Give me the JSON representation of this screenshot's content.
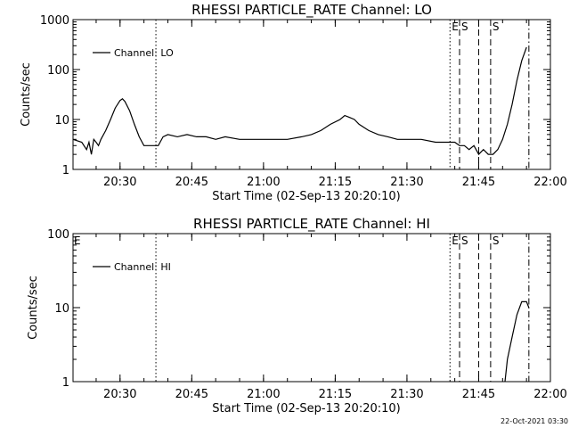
{
  "footer_timestamp": "22-Oct-2021 03:30",
  "chart_data": [
    {
      "type": "line",
      "title": "RHESSI PARTICLE_RATE Channel: LO",
      "xlabel": "Start Time (02-Sep-13 20:20:10)",
      "ylabel": "Counts/sec",
      "y_scale": "log",
      "xlim": [
        "20:20:10",
        "22:00:00"
      ],
      "ylim": [
        1,
        1000
      ],
      "x_tick_labels": [
        "20:30",
        "20:45",
        "21:00",
        "21:15",
        "21:30",
        "21:45",
        "22:00"
      ],
      "y_tick_labels": [
        "1",
        "10",
        "100",
        "1000"
      ],
      "legend": {
        "label": "Channel: LO",
        "placement": "top-left"
      },
      "markers": [
        {
          "time": "20:37:30",
          "style": "dotted",
          "label": ""
        },
        {
          "time": "21:39:00",
          "style": "dotted",
          "label": "E"
        },
        {
          "time": "21:41:00",
          "style": "dashed",
          "label": "S"
        },
        {
          "time": "21:45:00",
          "style": "dashed",
          "label": ""
        },
        {
          "time": "21:47:30",
          "style": "dashed",
          "label": "S"
        },
        {
          "time": "21:55:30",
          "style": "dashdot",
          "label": ""
        }
      ],
      "series": [
        {
          "name": "Channel: LO",
          "x": [
            "20:20:10",
            "20:22:00",
            "20:23:00",
            "20:23:30",
            "20:24:00",
            "20:24:30",
            "20:25:00",
            "20:25:30",
            "20:26:00",
            "20:27:00",
            "20:28:00",
            "20:29:00",
            "20:30:00",
            "20:30:30",
            "20:31:00",
            "20:32:00",
            "20:33:00",
            "20:34:00",
            "20:35:00",
            "20:36:00",
            "20:37:00",
            "20:38:00",
            "20:39:00",
            "20:40:00",
            "20:42:00",
            "20:44:00",
            "20:46:00",
            "20:48:00",
            "20:50:00",
            "20:52:00",
            "20:55:00",
            "21:00:00",
            "21:05:00",
            "21:08:00",
            "21:10:00",
            "21:12:00",
            "21:14:00",
            "21:16:00",
            "21:17:00",
            "21:18:00",
            "21:19:00",
            "21:20:00",
            "21:22:00",
            "21:24:00",
            "21:26:00",
            "21:28:00",
            "21:30:00",
            "21:33:00",
            "21:36:00",
            "21:38:00",
            "21:40:00",
            "21:41:00",
            "21:42:00",
            "21:43:00",
            "21:44:00",
            "21:45:00",
            "21:46:00",
            "21:47:00",
            "21:48:00",
            "21:49:00",
            "21:50:00",
            "21:51:00",
            "21:52:00",
            "21:53:00",
            "21:54:00",
            "21:55:00"
          ],
          "y": [
            4,
            3.5,
            2.5,
            3.5,
            2,
            4,
            3.5,
            3,
            4,
            6,
            10,
            17,
            24,
            26,
            23,
            15,
            8,
            4.5,
            3,
            3,
            3,
            3,
            4.5,
            5,
            4.5,
            5,
            4.5,
            4.5,
            4,
            4.5,
            4,
            4,
            4,
            4.5,
            5,
            6,
            8,
            10,
            12,
            11,
            10,
            8,
            6,
            5,
            4.5,
            4,
            4,
            4,
            3.5,
            3.5,
            3.5,
            3,
            3,
            2.5,
            3,
            2,
            2.5,
            2,
            2,
            2.5,
            4,
            8,
            20,
            60,
            150,
            280
          ]
        }
      ]
    },
    {
      "type": "line",
      "title": "RHESSI PARTICLE_RATE Channel: HI",
      "xlabel": "Start Time (02-Sep-13 20:20:10)",
      "ylabel": "Counts/sec",
      "y_scale": "log",
      "xlim": [
        "20:20:10",
        "22:00:00"
      ],
      "ylim": [
        1,
        100
      ],
      "x_tick_labels": [
        "20:30",
        "20:45",
        "21:00",
        "21:15",
        "21:30",
        "21:45",
        "22:00"
      ],
      "y_tick_labels": [
        "1",
        "10",
        "100"
      ],
      "legend": {
        "label": "Channel: HI",
        "placement": "top-left"
      },
      "corner_label": "E",
      "markers": [
        {
          "time": "20:37:30",
          "style": "dotted",
          "label": ""
        },
        {
          "time": "21:39:00",
          "style": "dotted",
          "label": "E"
        },
        {
          "time": "21:41:00",
          "style": "dashed",
          "label": "S"
        },
        {
          "time": "21:45:00",
          "style": "dashed",
          "label": ""
        },
        {
          "time": "21:47:30",
          "style": "dashed",
          "label": "S"
        },
        {
          "time": "21:55:30",
          "style": "dashdot",
          "label": ""
        }
      ],
      "series": [
        {
          "name": "Channel: HI",
          "x": [
            "21:50:30",
            "21:51:00",
            "21:52:00",
            "21:53:00",
            "21:54:00",
            "21:54:30",
            "21:55:00",
            "21:55:30"
          ],
          "y": [
            1,
            2,
            4,
            8,
            12,
            12,
            12,
            10
          ]
        }
      ]
    }
  ]
}
